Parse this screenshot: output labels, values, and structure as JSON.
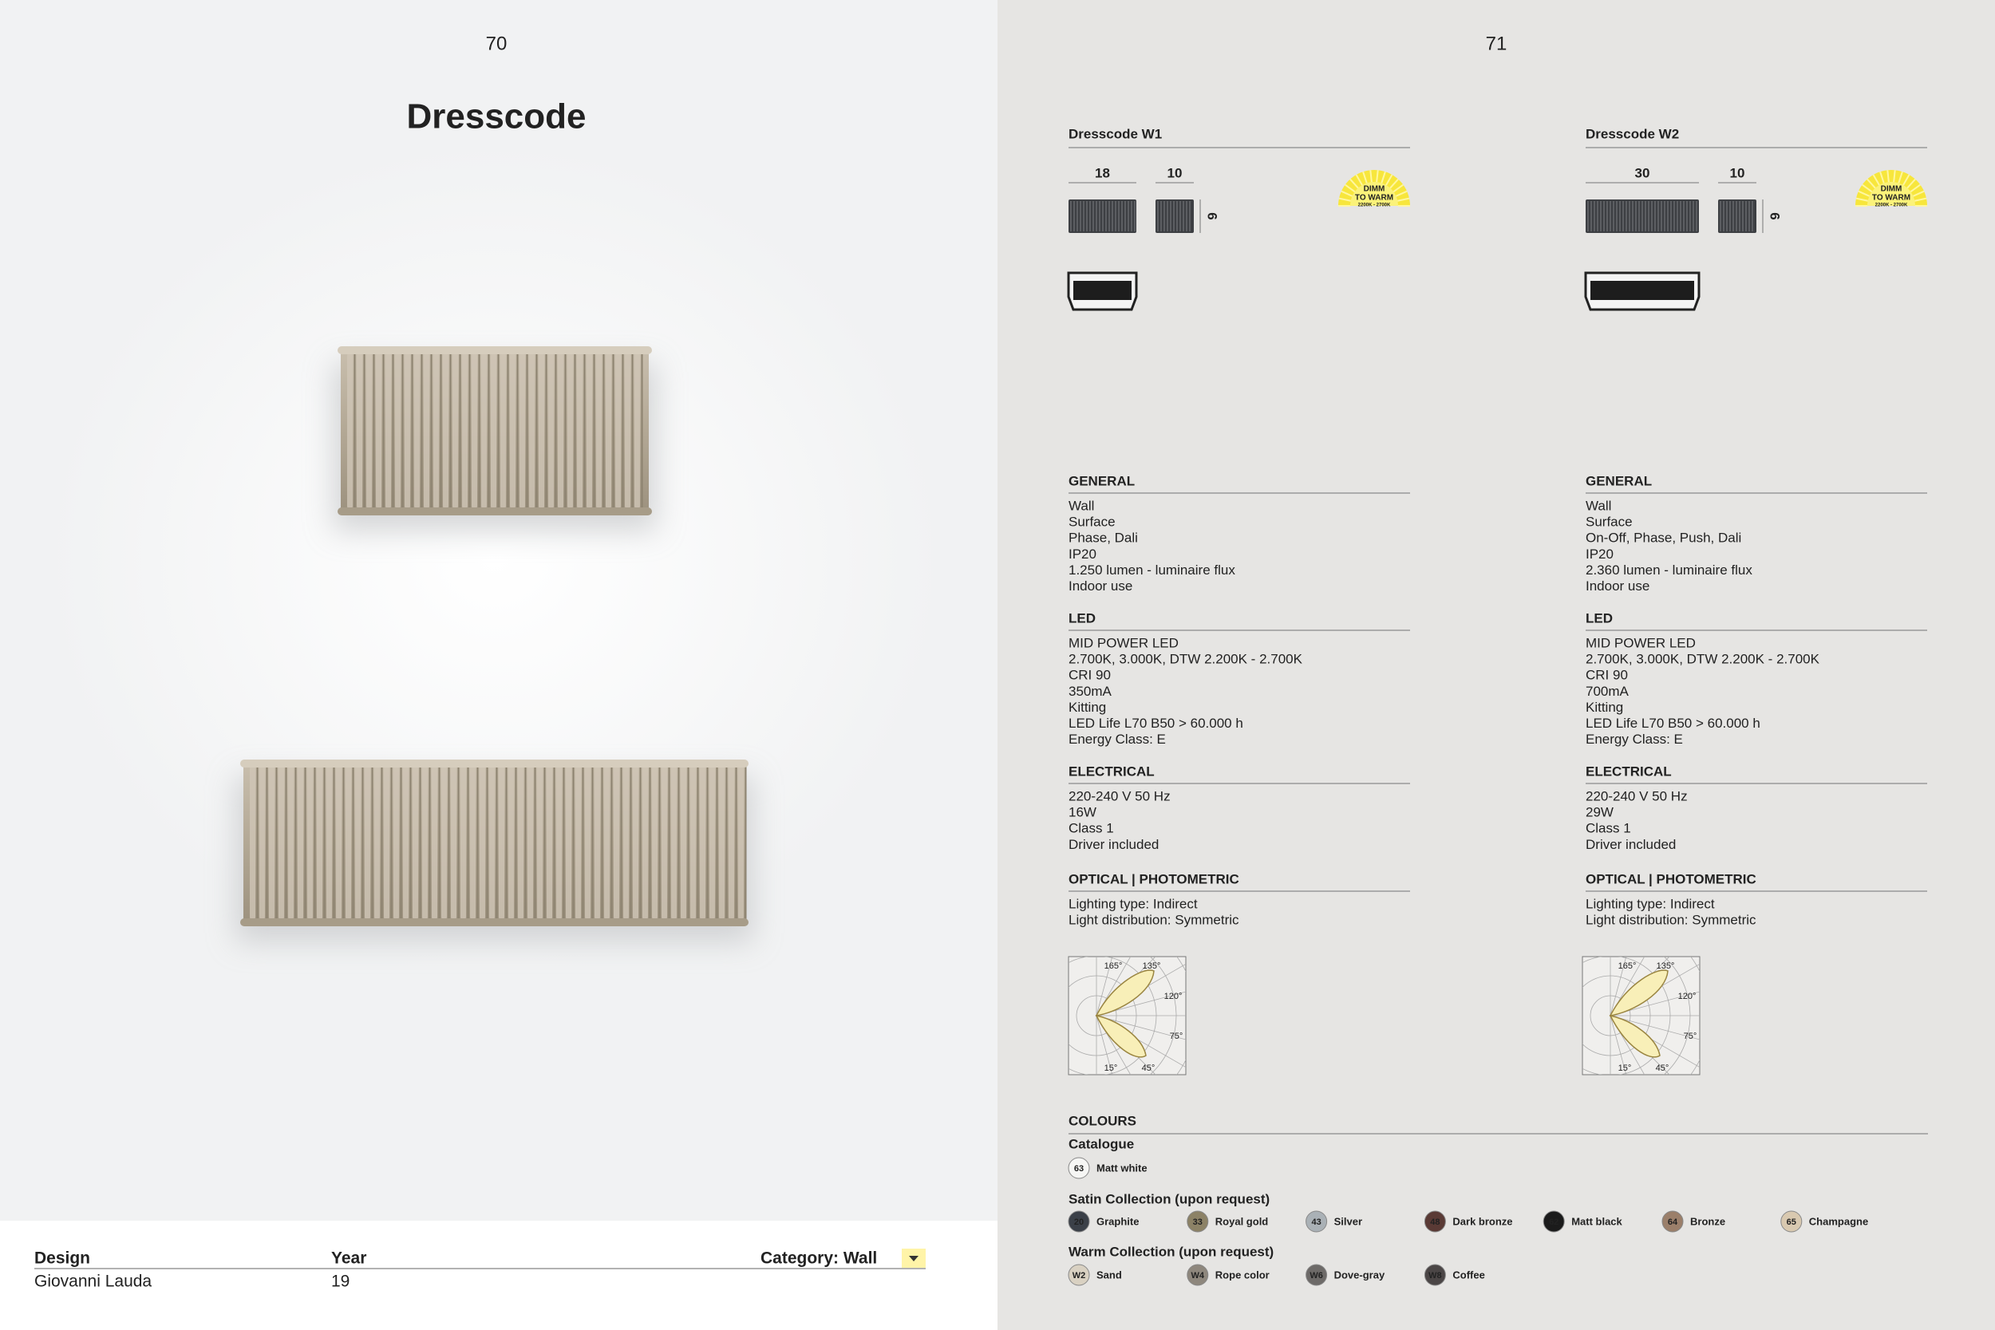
{
  "left": {
    "page_number": "70",
    "title": "Dresscode",
    "footer": {
      "design_label": "Design",
      "designer": "Giovanni Lauda",
      "year_label": "Year",
      "year": "19",
      "category": "Category: Wall"
    }
  },
  "right": {
    "page_number": "71",
    "products": [
      {
        "name": "Dresscode W1",
        "dims": {
          "width": "18",
          "depth": "10",
          "height": "6"
        },
        "badge": [
          "DIMM",
          "TO WARM",
          "2200K - 2700K"
        ],
        "sections": [
          {
            "heading": "GENERAL",
            "items": [
              "Wall",
              "Surface",
              "Phase, Dali",
              "IP20",
              "1.250 lumen - luminaire flux",
              "Indoor use"
            ]
          },
          {
            "heading": "LED",
            "items": [
              "MID POWER LED",
              "2.700K, 3.000K, DTW 2.200K - 2.700K",
              "CRI 90",
              "350mA",
              "Kitting",
              "LED Life L70 B50 > 60.000 h",
              "Energy Class: E"
            ]
          },
          {
            "heading": "ELECTRICAL",
            "items": [
              "220-240 V 50 Hz",
              "16W",
              "Class 1",
              "Driver included"
            ]
          },
          {
            "heading": "OPTICAL | PHOTOMETRIC",
            "items": [
              "Lighting type: Indirect",
              "Light distribution: Symmetric"
            ]
          }
        ],
        "polar_labels": [
          "165°",
          "135°",
          "120°",
          "75°",
          "15°",
          "45°"
        ]
      },
      {
        "name": "Dresscode W2",
        "dims": {
          "width": "30",
          "depth": "10",
          "height": "6"
        },
        "badge": [
          "DIMM",
          "TO WARM",
          "2200K - 2700K"
        ],
        "sections": [
          {
            "heading": "GENERAL",
            "items": [
              "Wall",
              "Surface",
              "On-Off, Phase, Push, Dali",
              "IP20",
              "2.360 lumen - luminaire flux",
              "Indoor use"
            ]
          },
          {
            "heading": "LED",
            "items": [
              "MID POWER LED",
              "2.700K, 3.000K, DTW 2.200K - 2.700K",
              "CRI 90",
              "700mA",
              "Kitting",
              "LED Life L70 B50 > 60.000 h",
              "Energy Class: E"
            ]
          },
          {
            "heading": "ELECTRICAL",
            "items": [
              "220-240 V 50 Hz",
              "29W",
              "Class 1",
              "Driver included"
            ]
          },
          {
            "heading": "OPTICAL | PHOTOMETRIC",
            "items": [
              "Lighting type: Indirect",
              "Light distribution: Symmetric"
            ]
          }
        ],
        "polar_labels": [
          "165°",
          "135°",
          "120°",
          "75°",
          "15°",
          "45°"
        ]
      }
    ],
    "colours": {
      "heading": "COLOURS",
      "groups": [
        {
          "name": "Catalogue",
          "swatches": [
            {
              "code": "63",
              "name": "Matt white",
              "color": "#f6f6f4"
            }
          ]
        },
        {
          "name": "Satin Collection (upon request)",
          "swatches": [
            {
              "code": "20",
              "name": "Graphite",
              "color": "#3b4048"
            },
            {
              "code": "33",
              "name": "Royal gold",
              "color": "#8c8266"
            },
            {
              "code": "43",
              "name": "Silver",
              "color": "#aab1b6"
            },
            {
              "code": "48",
              "name": "Dark bronze",
              "color": "#5a3a35"
            },
            {
              "code": "62",
              "name": "Matt black",
              "color": "#1b1b1b"
            },
            {
              "code": "64",
              "name": "Bronze",
              "color": "#9b7f6a"
            },
            {
              "code": "65",
              "name": "Champagne",
              "color": "#d9c9b0"
            }
          ]
        },
        {
          "name": "Warm Collection (upon request)",
          "swatches": [
            {
              "code": "W2",
              "name": "Sand",
              "color": "#d9d1c2"
            },
            {
              "code": "W4",
              "name": "Rope color",
              "color": "#8e877d"
            },
            {
              "code": "W6",
              "name": "Dove-gray",
              "color": "#6d6a68"
            },
            {
              "code": "W8",
              "name": "Coffee",
              "color": "#4b4646"
            }
          ]
        }
      ]
    }
  }
}
